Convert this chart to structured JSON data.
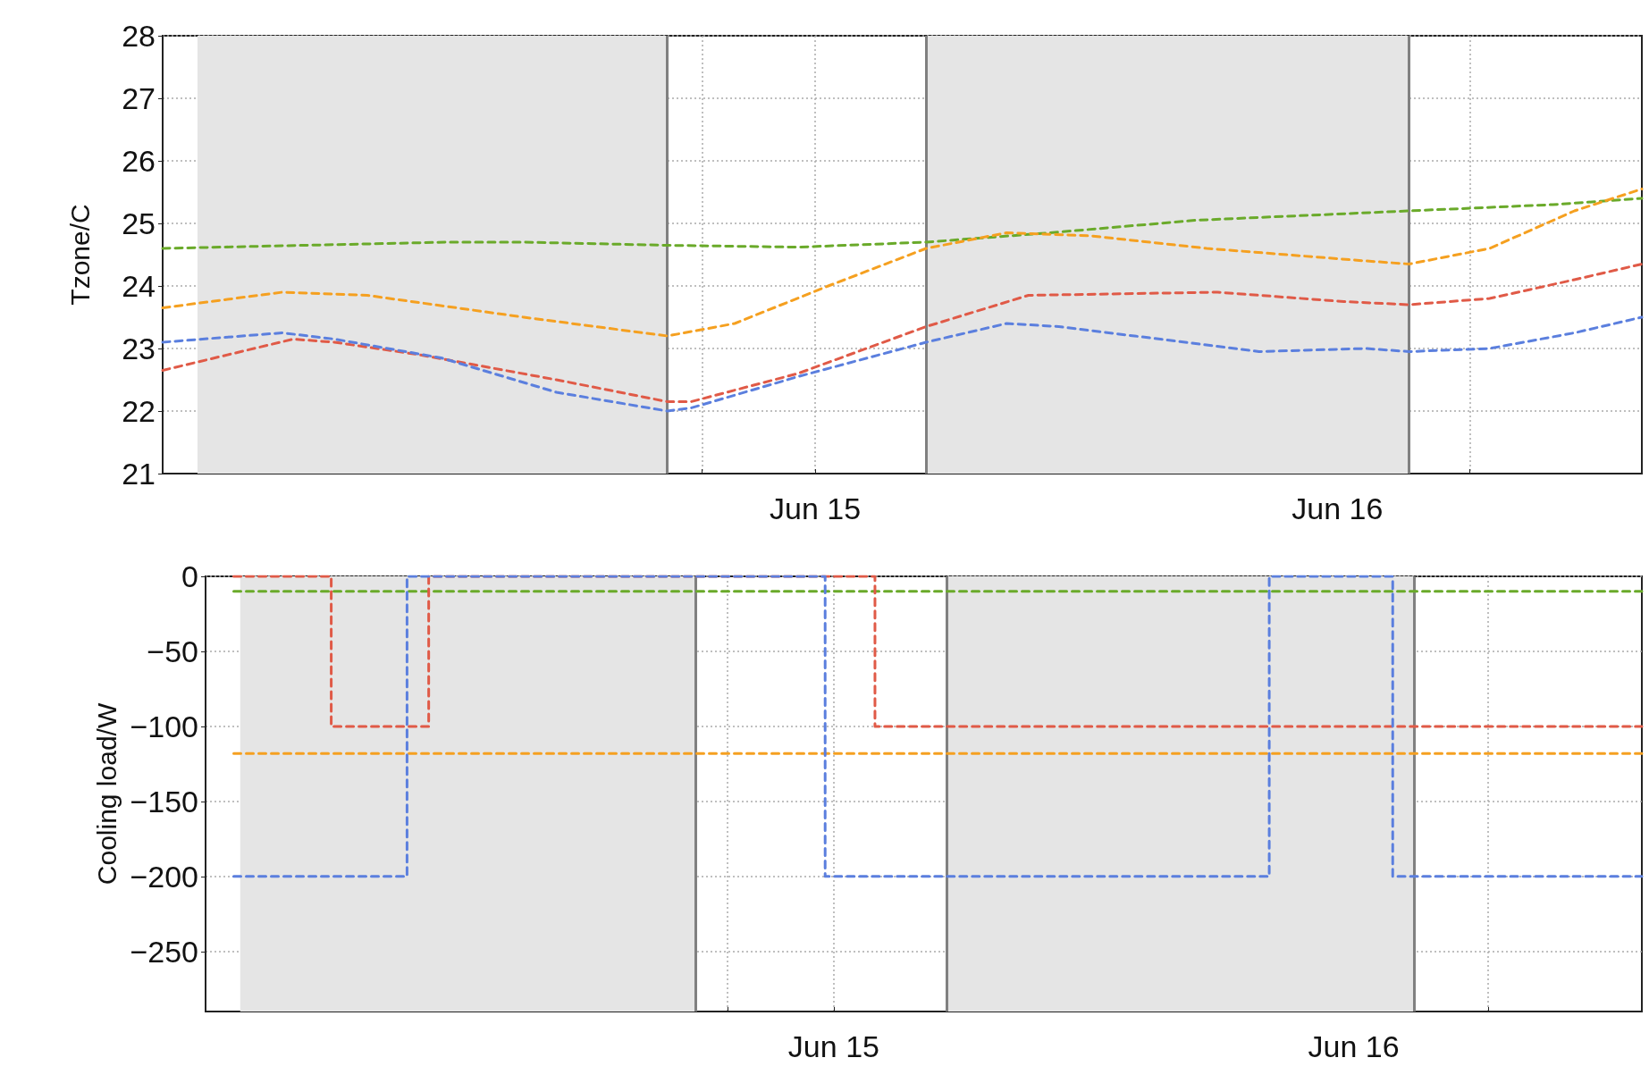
{
  "chart_data": [
    {
      "type": "line",
      "ylabel": "Tzone/C",
      "xlim": [
        "--06-13T18:00",
        "--06-16T14:00"
      ],
      "ylim": [
        21,
        28
      ],
      "yticks": [
        21,
        22,
        23,
        24,
        25,
        26,
        27,
        28
      ],
      "xticks": [
        {
          "value": "--06-14T07:06",
          "label": null
        },
        {
          "value": "--06-14T18:48",
          "label": null
        },
        {
          "value": "--06-15",
          "label": "Jun 15"
        },
        {
          "value": "--06-15T06:36",
          "label": null
        },
        {
          "value": "--06-15T18:24",
          "label": null
        },
        {
          "value": "--06-16",
          "label": "Jun 16"
        },
        {
          "value": "--06-16T06:06",
          "label": null
        }
      ],
      "grid": true,
      "line_style": "dashed",
      "marker": "none",
      "bands": [
        {
          "axis": "x",
          "from": "--06-13T19:36",
          "to": "--06-14T17:12",
          "color": "#e5e5e5"
        },
        {
          "axis": "x",
          "from": "--06-15T05:06",
          "to": "--06-16T03:18",
          "color": "#e5e5e5"
        }
      ],
      "ref_lines": [
        {
          "axis": "x",
          "value": "--06-14T17:12",
          "color": "#808080"
        },
        {
          "axis": "x",
          "value": "--06-15T05:06",
          "color": "#808080"
        },
        {
          "axis": "x",
          "value": "--06-16T03:18",
          "color": "#808080"
        }
      ],
      "series": [
        {
          "color": "#6aaa2a",
          "x": [
            "--06-13T18:00",
            "--06-14T07:06",
            "--06-14T10:36",
            "--06-14T17:12",
            "--06-14T23:12",
            "--06-15T05:06",
            "--06-15T10:48",
            "--06-15T17:30",
            "--06-16T03:18",
            "--06-16T09:54",
            "--06-16T14:00"
          ],
          "values": [
            24.6,
            24.7,
            24.7,
            24.65,
            24.62,
            24.7,
            24.85,
            25.05,
            25.2,
            25.3,
            25.4
          ]
        },
        {
          "color": "#f5a020",
          "x": [
            "--06-13T18:00",
            "--06-13T23:30",
            "--06-14T03:24",
            "--06-14T10:36",
            "--06-14T17:12",
            "--06-14T20:18",
            "--06-15T00:36",
            "--06-15T05:06",
            "--06-15T08:48",
            "--06-15T12:42",
            "--06-15T18:00",
            "--06-16T01:18",
            "--06-16T03:18",
            "--06-16T07:00",
            "--06-16T10:54",
            "--06-16T14:00"
          ],
          "values": [
            23.65,
            23.9,
            23.85,
            23.5,
            23.2,
            23.4,
            24,
            24.6,
            24.85,
            24.8,
            24.6,
            24.4,
            24.35,
            24.6,
            25.2,
            25.55
          ]
        },
        {
          "color": "#e05a47",
          "x": [
            "--06-13T18:00",
            "--06-14T00:00",
            "--06-14T01:54",
            "--06-14T05:48",
            "--06-14T12:06",
            "--06-14T17:12",
            "--06-14T18:18",
            "--06-14T23:12",
            "--06-15T05:06",
            "--06-15T09:48",
            "--06-15T18:30",
            "--06-16T00:18",
            "--06-16T03:18",
            "--06-16T07:00",
            "--06-16T10:54",
            "--06-16T14:00"
          ],
          "values": [
            22.65,
            23.15,
            23.1,
            22.9,
            22.5,
            22.15,
            22.15,
            22.6,
            23.35,
            23.85,
            23.9,
            23.75,
            23.7,
            23.8,
            24.1,
            24.35
          ]
        },
        {
          "color": "#5b7fde",
          "x": [
            "--06-13T18:00",
            "--06-13T23:30",
            "--06-14T01:54",
            "--06-14T06:48",
            "--06-14T12:06",
            "--06-14T17:12",
            "--06-14T18:18",
            "--06-14T23:12",
            "--06-15T05:06",
            "--06-15T08:48",
            "--06-15T11:12",
            "--06-15T17:00",
            "--06-15T20:24",
            "--06-16T01:18",
            "--06-16T03:18",
            "--06-16T07:00",
            "--06-16T10:54",
            "--06-16T14:00"
          ],
          "values": [
            23.1,
            23.25,
            23.15,
            22.85,
            22.3,
            22,
            22.05,
            22.55,
            23.1,
            23.4,
            23.35,
            23.1,
            22.95,
            23,
            22.95,
            23,
            23.25,
            23.5
          ]
        }
      ]
    },
    {
      "type": "step",
      "ylabel": "Cooling load/W",
      "xlim": [
        "--06-13T19:00",
        "--06-16T13:18"
      ],
      "ylim": [
        -290,
        0
      ],
      "yticks": [
        -250,
        -200,
        -150,
        -100,
        -50,
        0
      ],
      "xticks": [
        {
          "value": "--06-14T07:24",
          "label": null
        },
        {
          "value": "--06-14T19:06",
          "label": null
        },
        {
          "value": "--06-15",
          "label": "Jun 15"
        },
        {
          "value": "--06-15T06:48",
          "label": null
        },
        {
          "value": "--06-15T18:30",
          "label": null
        },
        {
          "value": "--06-16",
          "label": "Jun 16"
        },
        {
          "value": "--06-16T06:12",
          "label": null
        }
      ],
      "grid": true,
      "line_style": "dashed",
      "marker": "none",
      "bands": [
        {
          "axis": "x",
          "from": "--06-13T20:36",
          "to": "--06-14T17:36",
          "color": "#e5e5e5"
        },
        {
          "axis": "x",
          "from": "--06-15T05:12",
          "to": "--06-16T02:48",
          "color": "#e5e5e5"
        }
      ],
      "ref_lines": [
        {
          "axis": "x",
          "value": "--06-14T17:36",
          "color": "#808080"
        },
        {
          "axis": "x",
          "value": "--06-15T05:12",
          "color": "#808080"
        },
        {
          "axis": "x",
          "value": "--06-16T02:48",
          "color": "#808080"
        }
      ],
      "series": [
        {
          "color": "#6aaa2a",
          "x": [
            "--06-13T20:18",
            "--06-16T13:18"
          ],
          "values": [
            -10,
            -10
          ]
        },
        {
          "color": "#f5a020",
          "x": [
            "--06-13T20:18",
            "--06-16T13:18"
          ],
          "values": [
            -118,
            -118
          ]
        },
        {
          "color": "#e05a47",
          "x": [
            "--06-13T20:18",
            "--06-14T00:48",
            "--06-14T05:18",
            "--06-15T01:54",
            "--06-16T13:18"
          ],
          "values": [
            0,
            -100,
            0,
            -100,
            -100
          ]
        },
        {
          "color": "#5b7fde",
          "x": [
            "--06-13T20:18",
            "--06-14T04:18",
            "--06-14T23:36",
            "--06-15T20:06",
            "--06-16T01:48",
            "--06-16T13:18"
          ],
          "values": [
            -200,
            0,
            -200,
            0,
            -200,
            -200
          ]
        }
      ]
    }
  ]
}
